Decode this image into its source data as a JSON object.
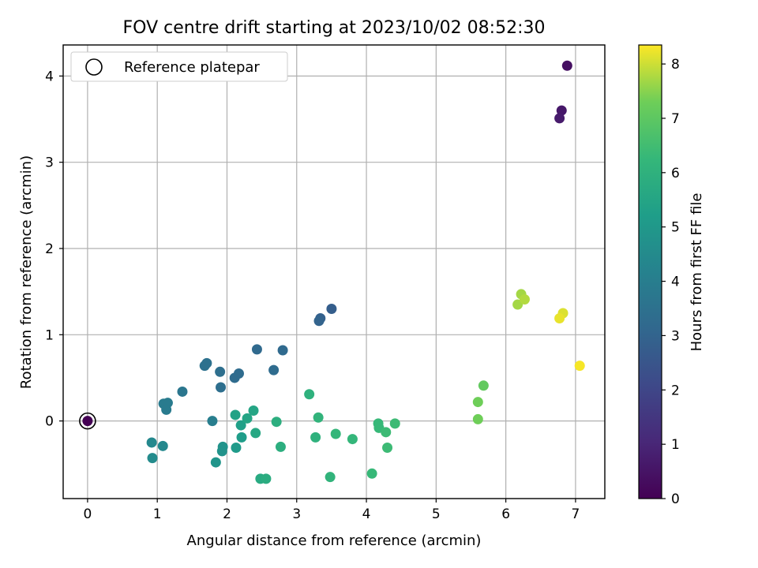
{
  "chart_data": {
    "type": "scatter",
    "title": "FOV centre drift starting at 2023/10/02 08:52:30",
    "xlabel": "Angular distance from reference (arcmin)",
    "ylabel": "Rotation from reference (arcmin)",
    "xlim": [
      -0.35,
      7.42
    ],
    "ylim": [
      -0.9,
      4.36
    ],
    "xticks": [
      0,
      1,
      2,
      3,
      4,
      5,
      6,
      7
    ],
    "yticks": [
      0,
      1,
      2,
      3,
      4
    ],
    "grid": true,
    "legend": {
      "position": "top-left",
      "entries": [
        "Reference platepar"
      ]
    },
    "reference_point": {
      "x": 0,
      "y": 0
    },
    "colorbar": {
      "label": "Hours from first FF file",
      "colormap": "viridis",
      "range": [
        0,
        8.35
      ],
      "ticks": [
        0,
        1,
        2,
        3,
        4,
        5,
        6,
        7,
        8
      ]
    },
    "points": [
      {
        "x": 0.0,
        "y": 0.0,
        "h": 0.0
      },
      {
        "x": 6.88,
        "y": 4.12,
        "h": 0.4
      },
      {
        "x": 6.8,
        "y": 3.6,
        "h": 0.6
      },
      {
        "x": 6.77,
        "y": 3.51,
        "h": 0.7
      },
      {
        "x": 3.5,
        "y": 1.3,
        "h": 2.8
      },
      {
        "x": 3.34,
        "y": 1.19,
        "h": 2.9
      },
      {
        "x": 3.32,
        "y": 1.16,
        "h": 3.0
      },
      {
        "x": 2.43,
        "y": 0.83,
        "h": 3.2
      },
      {
        "x": 2.8,
        "y": 0.82,
        "h": 3.2
      },
      {
        "x": 2.67,
        "y": 0.59,
        "h": 3.3
      },
      {
        "x": 2.11,
        "y": 0.5,
        "h": 3.3
      },
      {
        "x": 2.17,
        "y": 0.55,
        "h": 3.3
      },
      {
        "x": 1.9,
        "y": 0.57,
        "h": 3.4
      },
      {
        "x": 1.91,
        "y": 0.39,
        "h": 3.4
      },
      {
        "x": 1.68,
        "y": 0.64,
        "h": 3.5
      },
      {
        "x": 1.71,
        "y": 0.67,
        "h": 3.5
      },
      {
        "x": 1.36,
        "y": 0.34,
        "h": 3.7
      },
      {
        "x": 1.09,
        "y": 0.2,
        "h": 3.9
      },
      {
        "x": 1.15,
        "y": 0.21,
        "h": 3.9
      },
      {
        "x": 1.13,
        "y": 0.13,
        "h": 3.9
      },
      {
        "x": 1.79,
        "y": 0.0,
        "h": 4.0
      },
      {
        "x": 0.92,
        "y": -0.25,
        "h": 4.4
      },
      {
        "x": 1.08,
        "y": -0.29,
        "h": 4.4
      },
      {
        "x": 0.93,
        "y": -0.43,
        "h": 4.5
      },
      {
        "x": 1.94,
        "y": -0.3,
        "h": 4.8
      },
      {
        "x": 1.93,
        "y": -0.35,
        "h": 4.8
      },
      {
        "x": 1.84,
        "y": -0.48,
        "h": 4.9
      },
      {
        "x": 2.13,
        "y": -0.31,
        "h": 5.1
      },
      {
        "x": 2.21,
        "y": -0.19,
        "h": 5.2
      },
      {
        "x": 2.2,
        "y": -0.05,
        "h": 5.3
      },
      {
        "x": 2.12,
        "y": 0.07,
        "h": 5.4
      },
      {
        "x": 2.29,
        "y": 0.03,
        "h": 5.5
      },
      {
        "x": 2.38,
        "y": 0.12,
        "h": 5.5
      },
      {
        "x": 2.41,
        "y": -0.14,
        "h": 5.6
      },
      {
        "x": 2.48,
        "y": -0.67,
        "h": 5.7
      },
      {
        "x": 2.56,
        "y": -0.67,
        "h": 5.8
      },
      {
        "x": 2.71,
        "y": -0.01,
        "h": 5.9
      },
      {
        "x": 2.77,
        "y": -0.3,
        "h": 5.9
      },
      {
        "x": 3.18,
        "y": 0.31,
        "h": 6.0
      },
      {
        "x": 3.27,
        "y": -0.19,
        "h": 6.0
      },
      {
        "x": 3.31,
        "y": 0.04,
        "h": 6.1
      },
      {
        "x": 3.48,
        "y": -0.65,
        "h": 6.1
      },
      {
        "x": 3.56,
        "y": -0.15,
        "h": 6.2
      },
      {
        "x": 3.8,
        "y": -0.21,
        "h": 6.2
      },
      {
        "x": 4.08,
        "y": -0.61,
        "h": 6.3
      },
      {
        "x": 4.17,
        "y": -0.03,
        "h": 6.3
      },
      {
        "x": 4.18,
        "y": -0.08,
        "h": 6.3
      },
      {
        "x": 4.28,
        "y": -0.13,
        "h": 6.4
      },
      {
        "x": 4.3,
        "y": -0.31,
        "h": 6.4
      },
      {
        "x": 4.41,
        "y": -0.03,
        "h": 6.4
      },
      {
        "x": 5.68,
        "y": 0.41,
        "h": 7.1
      },
      {
        "x": 5.6,
        "y": 0.22,
        "h": 7.3
      },
      {
        "x": 5.6,
        "y": 0.02,
        "h": 7.3
      },
      {
        "x": 6.17,
        "y": 1.35,
        "h": 7.7
      },
      {
        "x": 6.22,
        "y": 1.47,
        "h": 7.7
      },
      {
        "x": 6.27,
        "y": 1.41,
        "h": 7.8
      },
      {
        "x": 6.82,
        "y": 1.25,
        "h": 8.1
      },
      {
        "x": 6.77,
        "y": 1.19,
        "h": 8.2
      },
      {
        "x": 7.06,
        "y": 0.64,
        "h": 8.3
      }
    ]
  }
}
